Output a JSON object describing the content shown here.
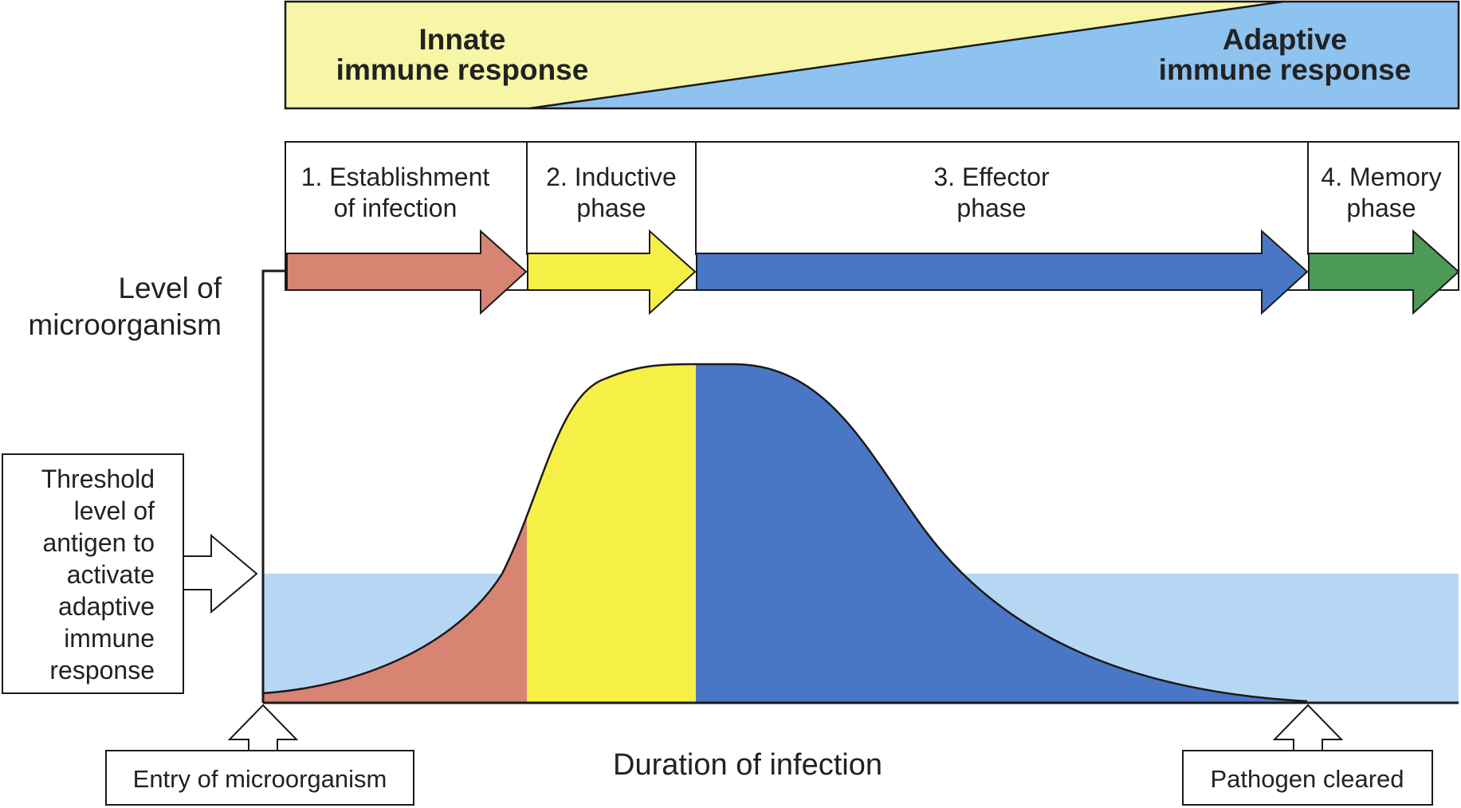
{
  "colors": {
    "innate": "#f7f6a6",
    "adaptive": "#8ec2ef",
    "threshold_band": "#b6d7f4",
    "phase1": "#d78473",
    "phase2": "#f6f046",
    "phase3": "#4a77c5",
    "phase4": "#4c9a56",
    "outline": "#1a1a1a"
  },
  "response_banner": {
    "innate": {
      "line1": "Innate",
      "line2": "immune response"
    },
    "adaptive": {
      "line1": "Adaptive",
      "line2": "immune response"
    }
  },
  "phases": [
    {
      "line1": "1. Establishment",
      "line2": "of infection"
    },
    {
      "line1": "2. Inductive",
      "line2": "phase"
    },
    {
      "line1": "3. Effector",
      "line2": "phase"
    },
    {
      "line1": "4. Memory",
      "line2": "phase"
    }
  ],
  "y_axis_label": {
    "line1": "Level of",
    "line2": "microorganism"
  },
  "x_axis_label": "Duration of infection",
  "threshold_label": [
    "Threshold",
    "level of",
    "antigen to",
    "activate",
    "adaptive",
    "immune",
    "response"
  ],
  "entry_label": "Entry of microorganism",
  "cleared_label": "Pathogen cleared"
}
